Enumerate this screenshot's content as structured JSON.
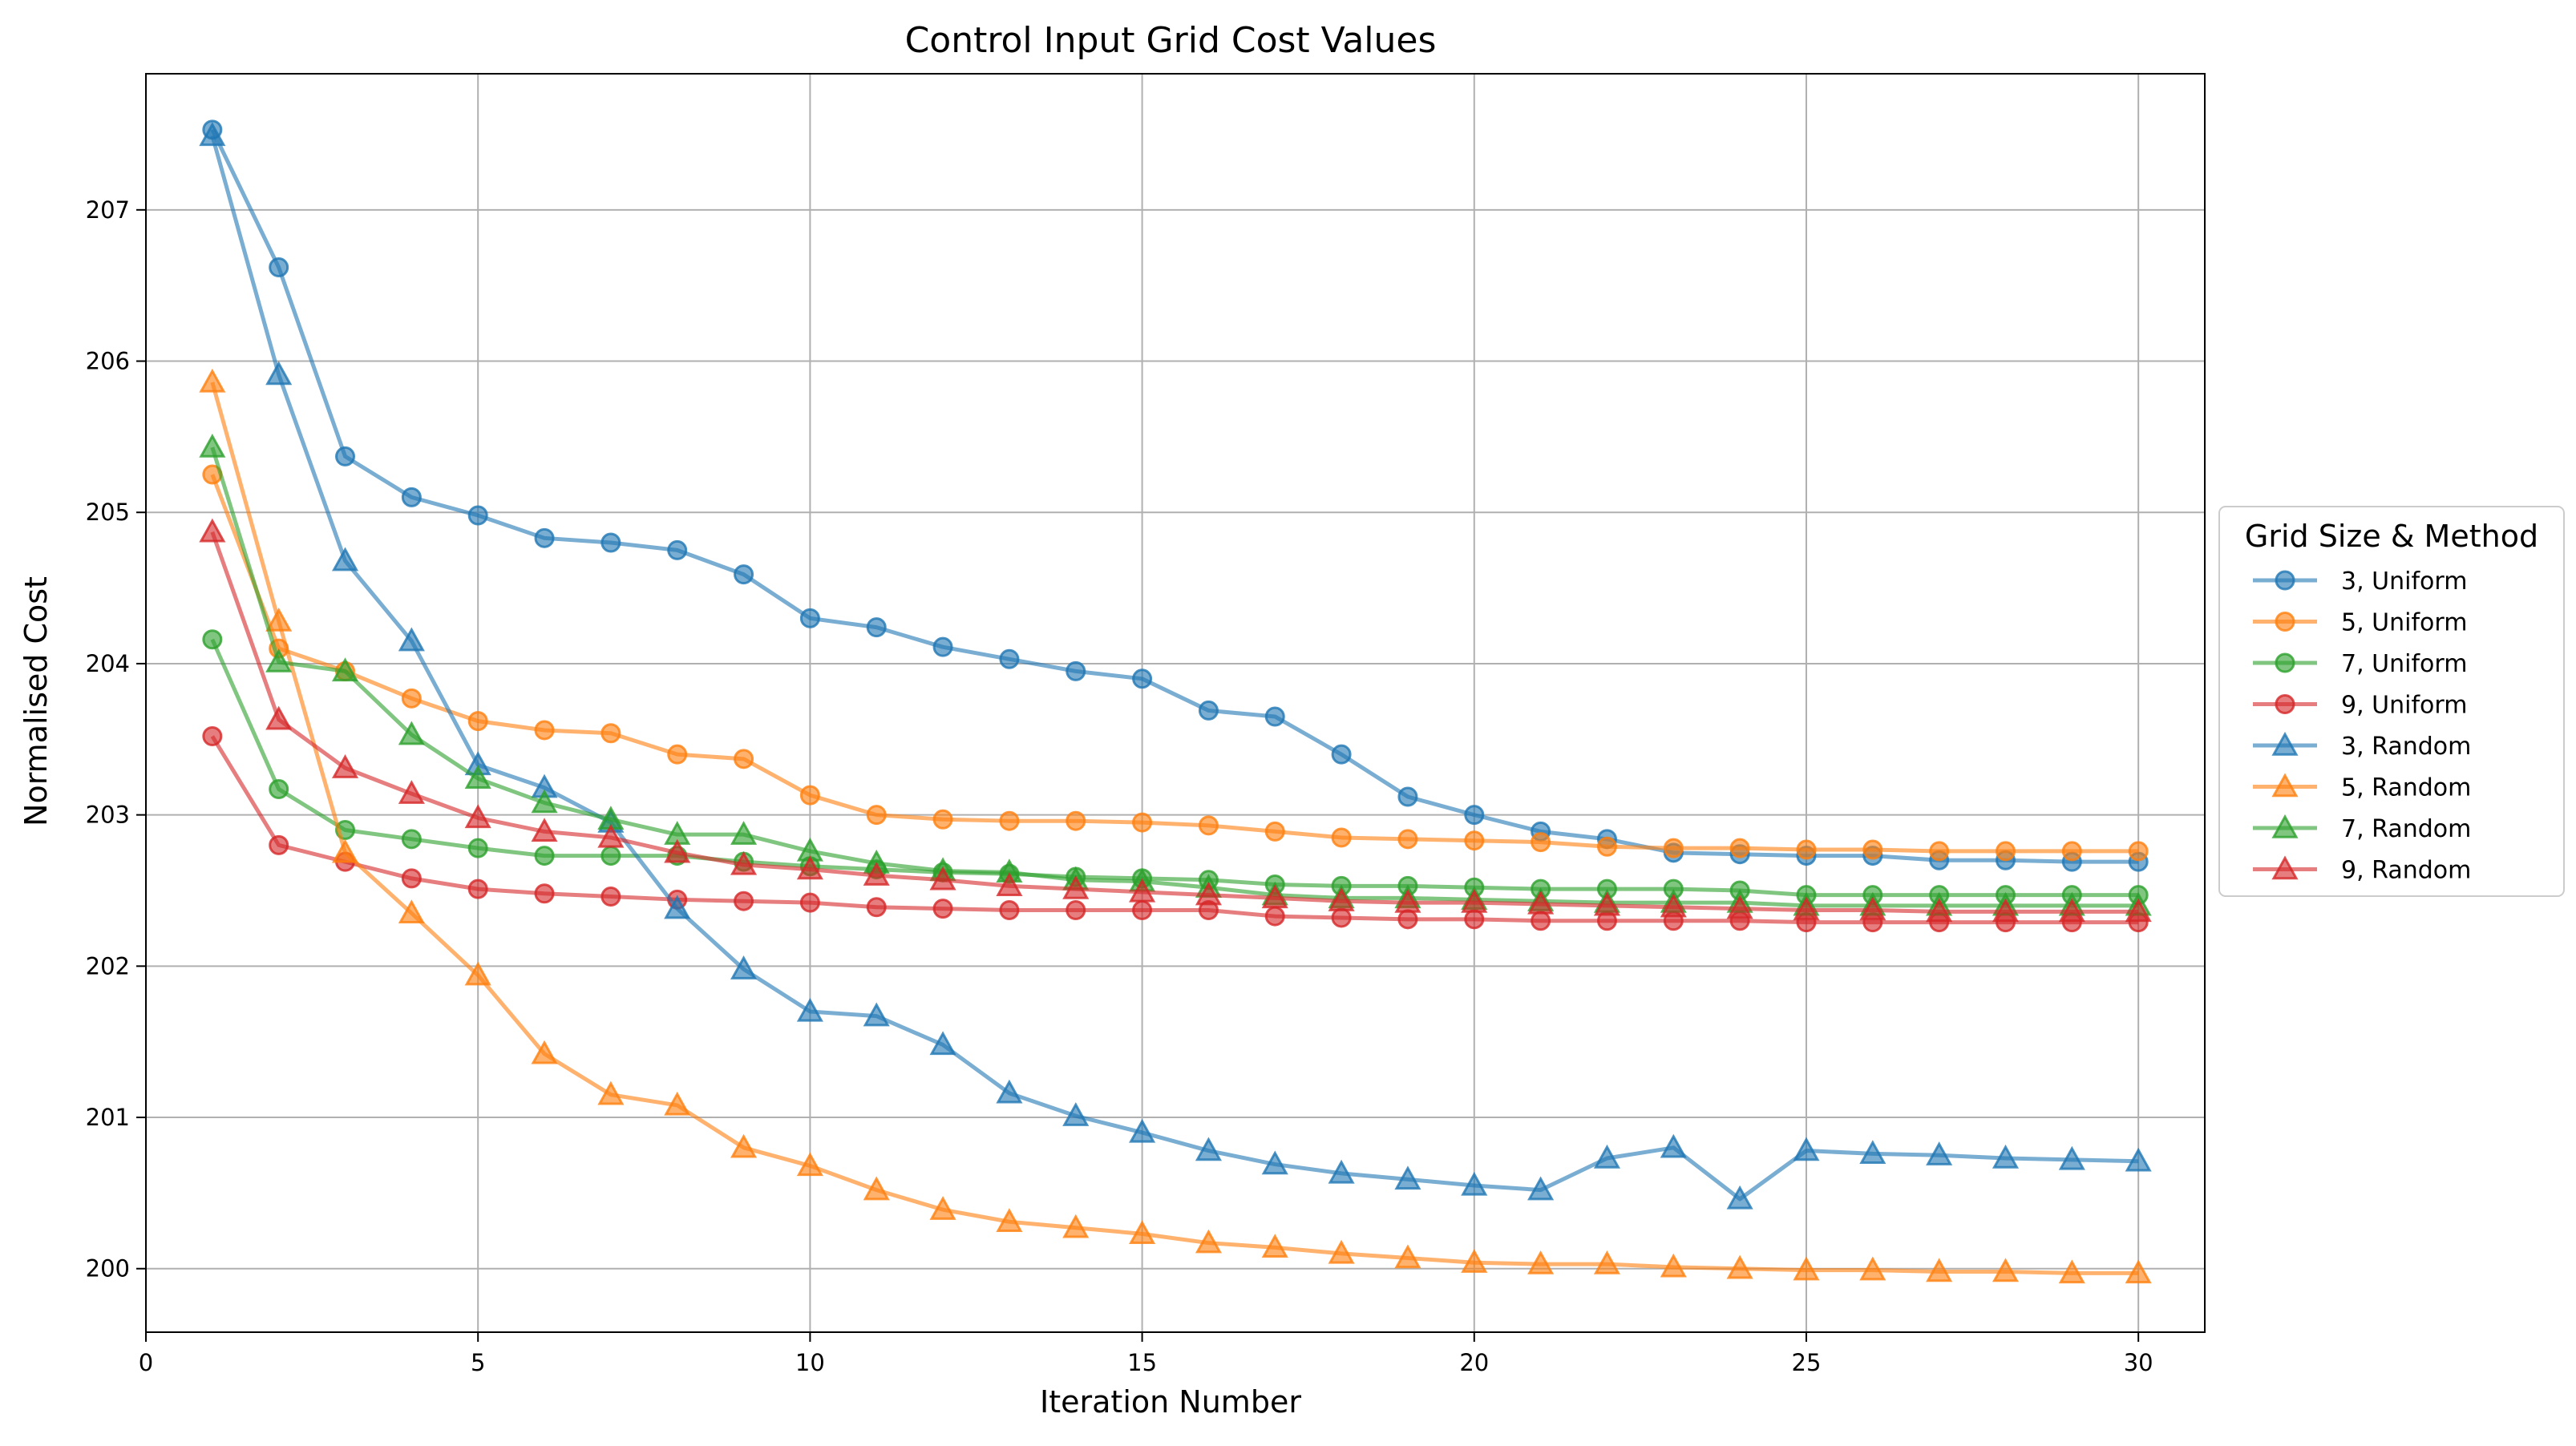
{
  "chart_data": {
    "type": "line",
    "title": "Control Input Grid Cost Values",
    "xlabel": "Iteration Number",
    "ylabel": "Normalised Cost",
    "xlim": [
      0,
      31
    ],
    "ylim": [
      199.58,
      207.9
    ],
    "xticks": [
      0,
      5,
      10,
      15,
      20,
      25,
      30
    ],
    "yticks": [
      200,
      201,
      202,
      203,
      204,
      205,
      206,
      207
    ],
    "grid": true,
    "legend_title": "Grid Size & Method",
    "legend_position": "outside-right",
    "x": [
      1,
      2,
      3,
      4,
      5,
      6,
      7,
      8,
      9,
      10,
      11,
      12,
      13,
      14,
      15,
      16,
      17,
      18,
      19,
      20,
      21,
      22,
      23,
      24,
      25,
      26,
      27,
      28,
      29,
      30
    ],
    "series": [
      {
        "name": "3, Uniform",
        "color": "#1f77b4",
        "marker": "circle",
        "values": [
          207.53,
          206.62,
          205.37,
          205.1,
          204.98,
          204.83,
          204.8,
          204.75,
          204.59,
          204.3,
          204.24,
          204.11,
          204.03,
          203.95,
          203.9,
          203.69,
          203.65,
          203.4,
          203.12,
          203.0,
          202.89,
          202.84,
          202.75,
          202.74,
          202.73,
          202.73,
          202.7,
          202.7,
          202.69,
          202.69
        ]
      },
      {
        "name": "5, Uniform",
        "color": "#ff7f0e",
        "marker": "circle",
        "values": [
          205.25,
          204.1,
          203.95,
          203.77,
          203.62,
          203.56,
          203.54,
          203.4,
          203.37,
          203.13,
          203.0,
          202.97,
          202.96,
          202.96,
          202.95,
          202.93,
          202.89,
          202.85,
          202.84,
          202.83,
          202.82,
          202.79,
          202.78,
          202.78,
          202.77,
          202.77,
          202.76,
          202.76,
          202.76,
          202.76
        ]
      },
      {
        "name": "7, Uniform",
        "color": "#2ca02c",
        "marker": "circle",
        "values": [
          204.16,
          203.17,
          202.9,
          202.84,
          202.78,
          202.73,
          202.73,
          202.73,
          202.69,
          202.66,
          202.64,
          202.62,
          202.61,
          202.59,
          202.58,
          202.57,
          202.54,
          202.53,
          202.53,
          202.52,
          202.51,
          202.51,
          202.51,
          202.5,
          202.47,
          202.47,
          202.47,
          202.47,
          202.47,
          202.47
        ]
      },
      {
        "name": "9, Uniform",
        "color": "#d62728",
        "marker": "circle",
        "values": [
          203.52,
          202.8,
          202.69,
          202.58,
          202.51,
          202.48,
          202.46,
          202.44,
          202.43,
          202.42,
          202.39,
          202.38,
          202.37,
          202.37,
          202.37,
          202.37,
          202.33,
          202.32,
          202.31,
          202.31,
          202.3,
          202.3,
          202.3,
          202.3,
          202.29,
          202.29,
          202.29,
          202.29,
          202.29,
          202.29
        ]
      },
      {
        "name": "3, Random",
        "color": "#1f77b4",
        "marker": "triangle",
        "values": [
          207.49,
          205.91,
          204.68,
          204.15,
          203.33,
          203.18,
          202.95,
          202.38,
          201.98,
          201.7,
          201.67,
          201.48,
          201.16,
          201.01,
          200.9,
          200.78,
          200.69,
          200.63,
          200.59,
          200.55,
          200.52,
          200.73,
          200.8,
          200.46,
          200.78,
          200.76,
          200.75,
          200.73,
          200.72,
          200.71
        ]
      },
      {
        "name": "5, Random",
        "color": "#ff7f0e",
        "marker": "triangle",
        "values": [
          205.86,
          204.28,
          202.75,
          202.35,
          201.94,
          201.42,
          201.15,
          201.08,
          200.8,
          200.68,
          200.52,
          200.39,
          200.31,
          200.27,
          200.23,
          200.17,
          200.14,
          200.1,
          200.07,
          200.04,
          200.03,
          200.03,
          200.01,
          200.0,
          199.99,
          199.99,
          199.98,
          199.98,
          199.97,
          199.97
        ]
      },
      {
        "name": "7, Random",
        "color": "#2ca02c",
        "marker": "triangle",
        "values": [
          205.43,
          204.01,
          203.95,
          203.53,
          203.24,
          203.08,
          202.97,
          202.87,
          202.87,
          202.76,
          202.68,
          202.63,
          202.62,
          202.57,
          202.56,
          202.52,
          202.47,
          202.45,
          202.45,
          202.44,
          202.43,
          202.42,
          202.42,
          202.42,
          202.4,
          202.4,
          202.4,
          202.4,
          202.4,
          202.4
        ]
      },
      {
        "name": "9, Random",
        "color": "#d62728",
        "marker": "triangle",
        "values": [
          204.87,
          203.63,
          203.31,
          203.14,
          202.98,
          202.89,
          202.85,
          202.75,
          202.67,
          202.64,
          202.6,
          202.57,
          202.53,
          202.51,
          202.49,
          202.47,
          202.45,
          202.43,
          202.42,
          202.42,
          202.41,
          202.4,
          202.39,
          202.38,
          202.37,
          202.37,
          202.36,
          202.36,
          202.36,
          202.36
        ]
      }
    ]
  }
}
